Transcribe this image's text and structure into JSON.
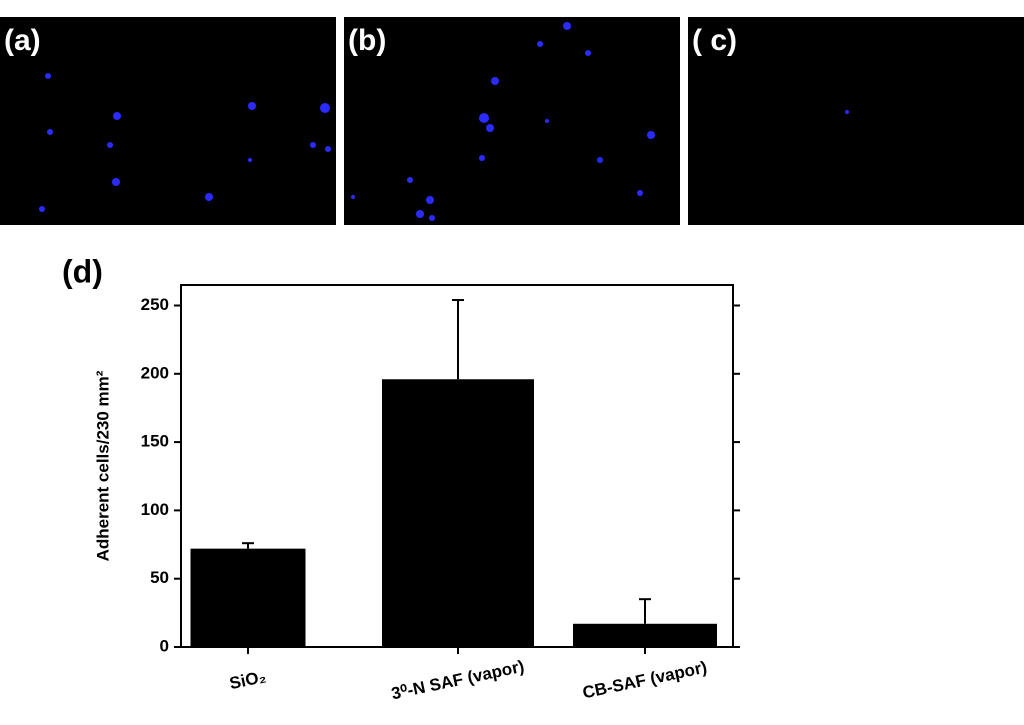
{
  "panels": [
    "(a)",
    "(b)",
    "( c)"
  ],
  "chart_data": {
    "type": "bar",
    "panel_label": "(d)",
    "y_label": "Adherent cells/230 mm²",
    "categories": [
      "SiO₂",
      "3⁰-N SAF (vapor)",
      "CB-SAF (vapor)"
    ],
    "values": [
      72,
      196,
      17
    ],
    "errors": [
      4,
      58,
      18
    ],
    "color": "#000000",
    "ylim": [
      0,
      265
    ],
    "yticks": [
      0,
      50,
      100,
      150,
      200,
      250
    ]
  }
}
